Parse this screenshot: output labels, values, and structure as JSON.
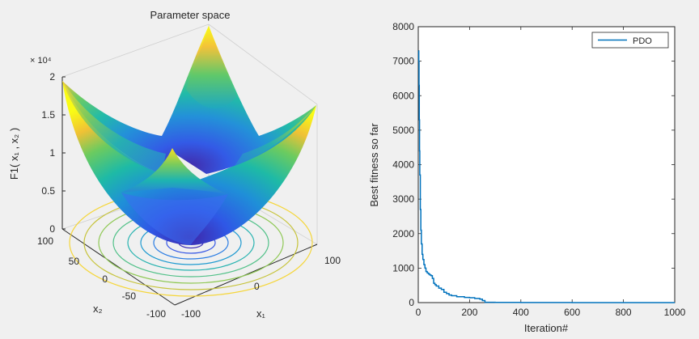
{
  "surface_plot": {
    "title": "Parameter space",
    "zlabel": "F1( x₁ , x₂ )",
    "xlabel": "x₁",
    "ylabel": "x₂",
    "exponent_label": "× 10⁴",
    "z_ticks": [
      "0",
      "0.5",
      "1",
      "1.5",
      "2"
    ],
    "x1_ticks": [
      "-100",
      "0",
      "100"
    ],
    "x2_ticks": [
      "100",
      "50",
      "0",
      "-50",
      "-100"
    ],
    "colormap": "parula",
    "colors": {
      "low": "#3e26a8",
      "mid": "#1ebaa6",
      "high": "#f9fb15"
    }
  },
  "chart_data": {
    "type": "line",
    "title": "",
    "xlabel": "Iteration#",
    "ylabel": "Best fitness so far",
    "xlim": [
      0,
      1000
    ],
    "ylim": [
      0,
      8000
    ],
    "x_ticks": [
      0,
      200,
      400,
      600,
      800,
      1000
    ],
    "y_ticks": [
      0,
      1000,
      2000,
      3000,
      4000,
      5000,
      6000,
      7000,
      8000
    ],
    "legend_position": "top-right",
    "grid": false,
    "series": [
      {
        "name": "PDO",
        "color": "#0072bd",
        "x": [
          1,
          2,
          3,
          4,
          5,
          6,
          8,
          10,
          12,
          15,
          18,
          22,
          26,
          30,
          35,
          40,
          45,
          50,
          55,
          60,
          65,
          70,
          80,
          90,
          100,
          110,
          120,
          130,
          150,
          180,
          200,
          220,
          240,
          250,
          260,
          300,
          400,
          500,
          600,
          700,
          800,
          900,
          1000
        ],
        "y": [
          7300,
          7000,
          6300,
          5300,
          4400,
          3700,
          2700,
          2100,
          1700,
          1400,
          1250,
          1100,
          1000,
          900,
          860,
          830,
          800,
          780,
          700,
          560,
          520,
          480,
          420,
          380,
          300,
          260,
          220,
          200,
          170,
          150,
          140,
          120,
          100,
          60,
          10,
          5,
          3,
          2,
          1,
          1,
          0,
          0,
          0
        ]
      }
    ]
  }
}
